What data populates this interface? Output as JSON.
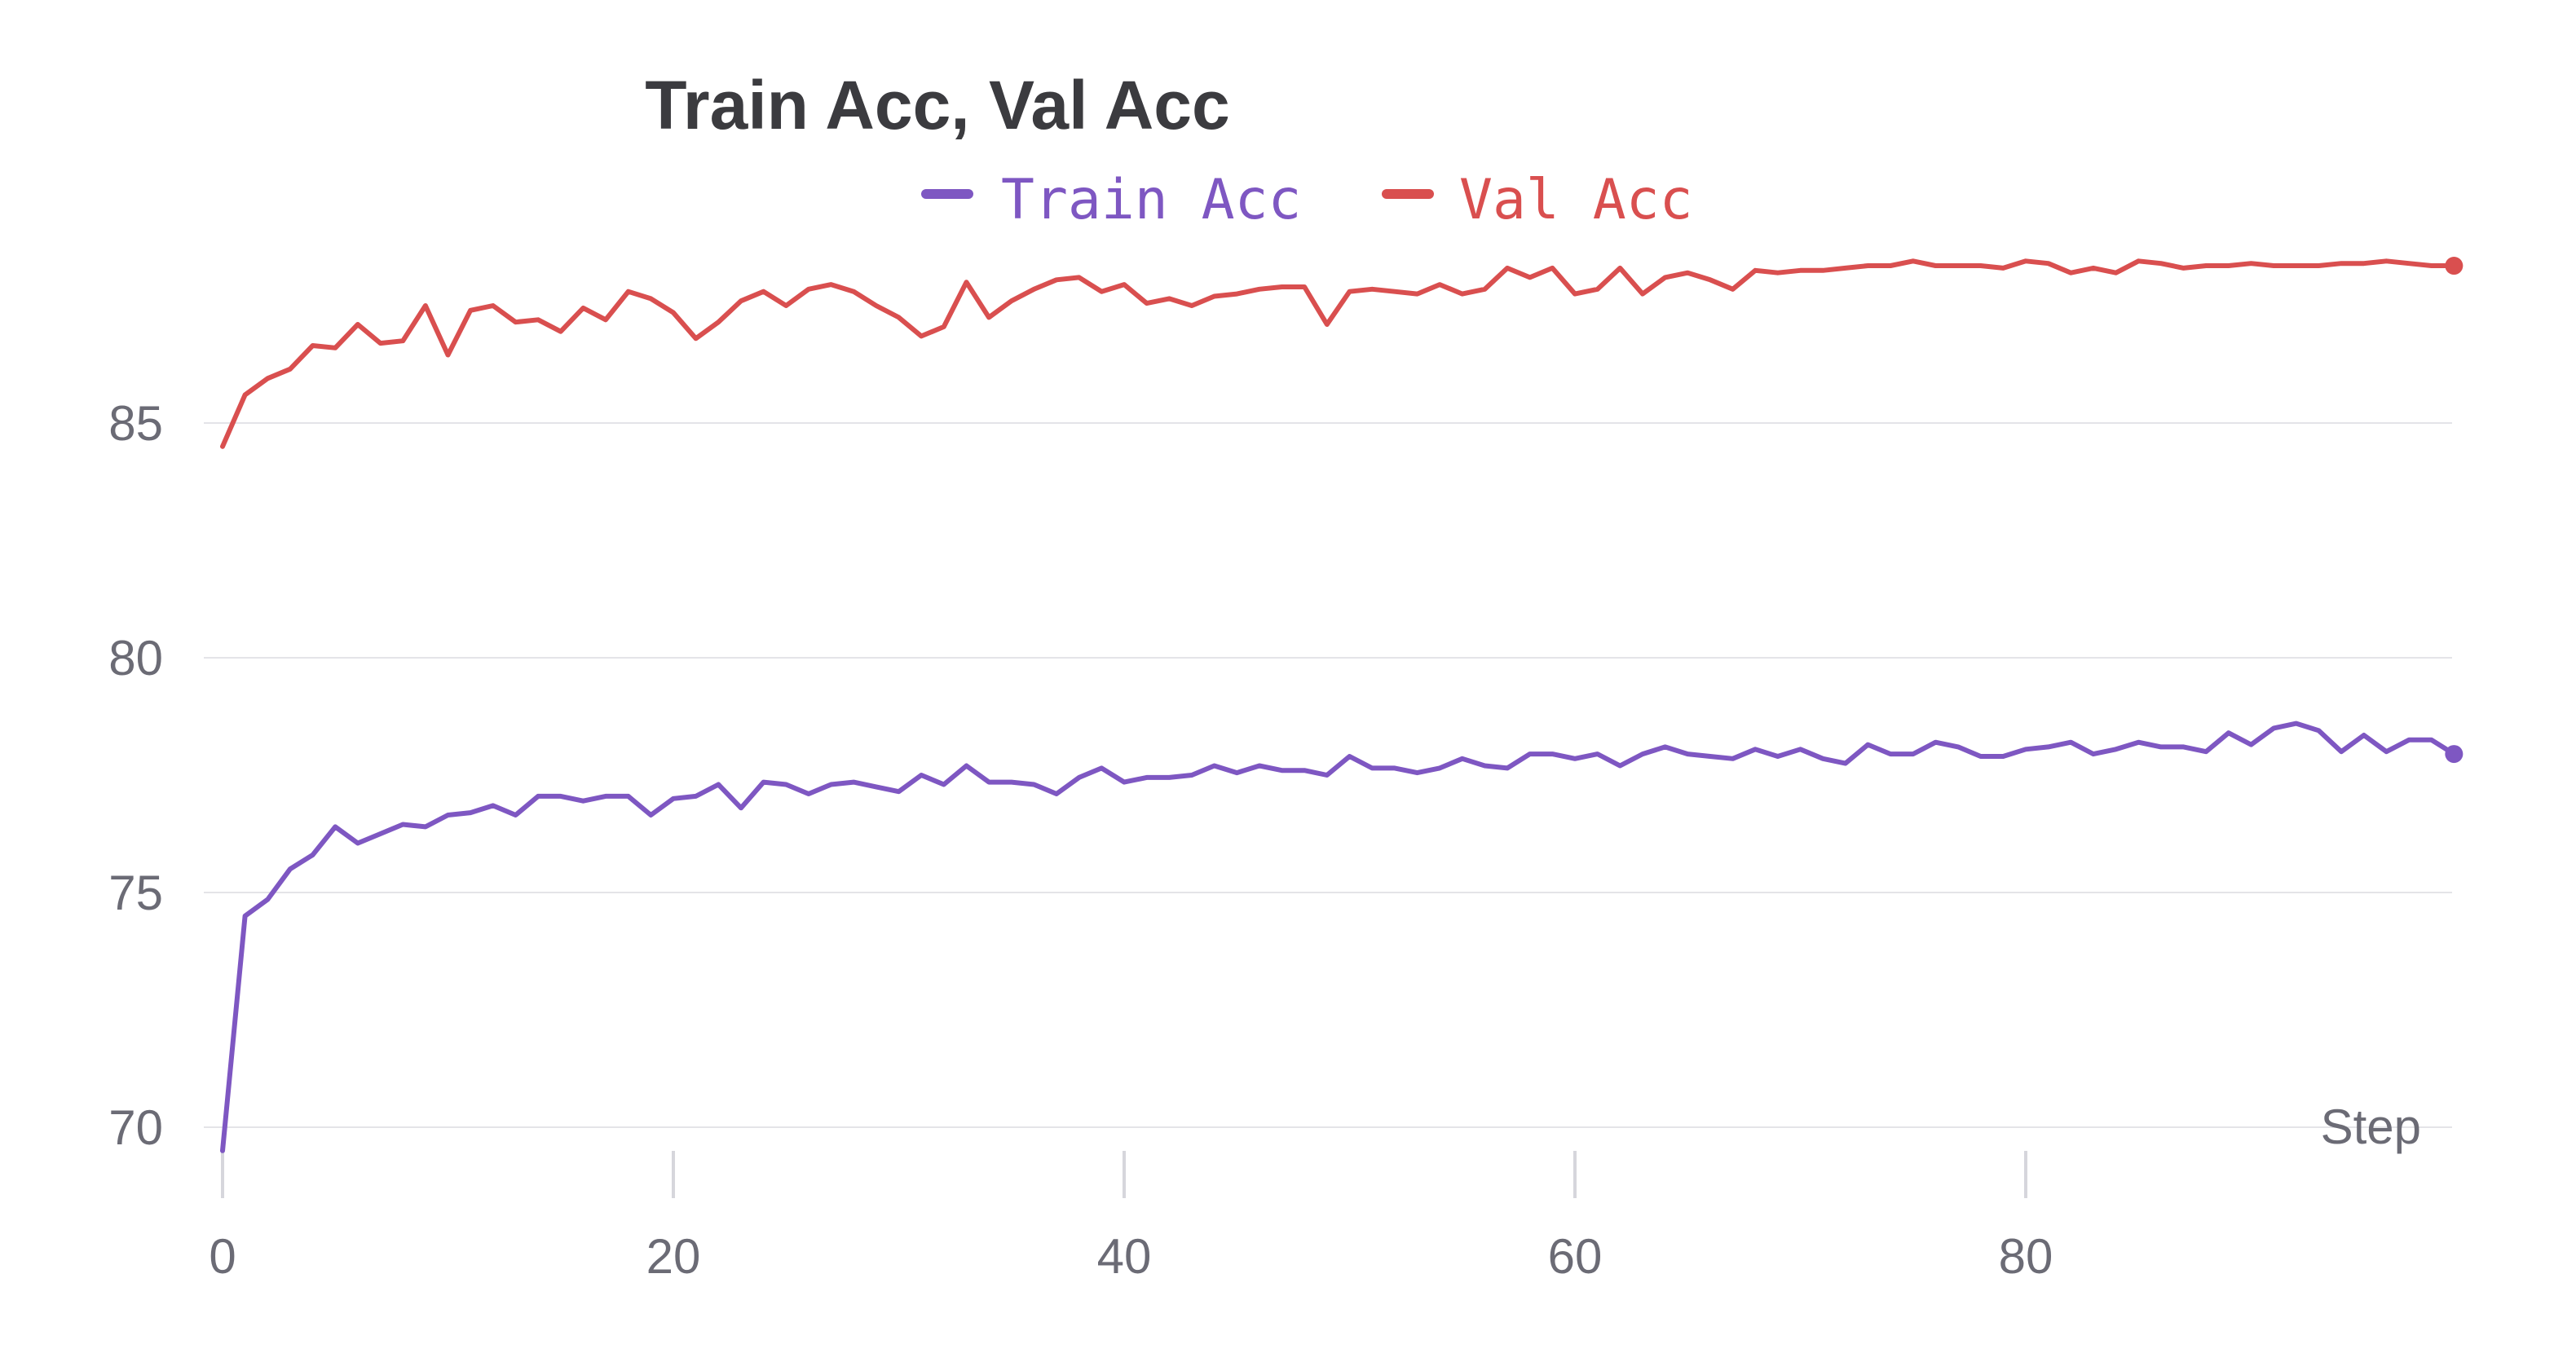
{
  "chart_data": {
    "type": "line",
    "title": "Train Acc, Val Acc",
    "xlabel": "Step",
    "ylabel": "",
    "xlim": [
      0,
      99
    ],
    "ylim": [
      69,
      90
    ],
    "x_ticks": [
      "0",
      "20",
      "40",
      "60",
      "80"
    ],
    "x_tick_values": [
      0,
      20,
      40,
      60,
      80
    ],
    "y_ticks": [
      "70",
      "75",
      "80",
      "85"
    ],
    "y_tick_values": [
      70,
      75,
      80,
      85
    ],
    "grid": true,
    "legend_position": "top-center",
    "series": [
      {
        "name": "Train Acc",
        "color": "#7e57c2",
        "x": [
          0,
          1,
          2,
          3,
          4,
          5,
          6,
          7,
          8,
          9,
          10,
          11,
          12,
          13,
          14,
          15,
          16,
          17,
          18,
          19,
          20,
          21,
          22,
          23,
          24,
          25,
          26,
          27,
          28,
          29,
          30,
          31,
          32,
          33,
          34,
          35,
          36,
          37,
          38,
          39,
          40,
          41,
          42,
          43,
          44,
          45,
          46,
          47,
          48,
          49,
          50,
          51,
          52,
          53,
          54,
          55,
          56,
          57,
          58,
          59,
          60,
          61,
          62,
          63,
          64,
          65,
          66,
          67,
          68,
          69,
          70,
          71,
          72,
          73,
          74,
          75,
          76,
          77,
          78,
          79,
          80,
          81,
          82,
          83,
          84,
          85,
          86,
          87,
          88,
          89,
          90,
          91,
          92,
          93,
          94,
          95,
          96,
          97,
          98,
          99
        ],
        "values": [
          69.5,
          74.5,
          74.85,
          75.5,
          75.8,
          76.4,
          76.05,
          76.25,
          76.45,
          76.4,
          76.65,
          76.7,
          76.85,
          76.65,
          77.05,
          77.05,
          76.95,
          77.05,
          77.05,
          76.65,
          77.0,
          77.05,
          77.3,
          76.8,
          77.35,
          77.3,
          77.1,
          77.3,
          77.35,
          77.25,
          77.15,
          77.5,
          77.3,
          77.7,
          77.35,
          77.35,
          77.3,
          77.1,
          77.45,
          77.65,
          77.35,
          77.45,
          77.45,
          77.5,
          77.7,
          77.55,
          77.7,
          77.6,
          77.6,
          77.5,
          77.9,
          77.65,
          77.65,
          77.55,
          77.65,
          77.85,
          77.7,
          77.65,
          77.95,
          77.95,
          77.85,
          77.95,
          77.7,
          77.95,
          78.1,
          77.95,
          77.9,
          77.85,
          78.05,
          77.9,
          78.05,
          77.85,
          77.75,
          78.15,
          77.95,
          77.95,
          78.2,
          78.1,
          77.9,
          77.9,
          78.05,
          78.1,
          78.2,
          77.95,
          78.05,
          78.2,
          78.1,
          78.1,
          78.0,
          78.4,
          78.15,
          78.5,
          78.6,
          78.45,
          78.0,
          78.35,
          78.0,
          78.25,
          78.25,
          77.95
        ]
      },
      {
        "name": "Val Acc",
        "color": "#d94f4f",
        "x": [
          0,
          1,
          2,
          3,
          4,
          5,
          6,
          7,
          8,
          9,
          10,
          11,
          12,
          13,
          14,
          15,
          16,
          17,
          18,
          19,
          20,
          21,
          22,
          23,
          24,
          25,
          26,
          27,
          28,
          29,
          30,
          31,
          32,
          33,
          34,
          35,
          36,
          37,
          38,
          39,
          40,
          41,
          42,
          43,
          44,
          45,
          46,
          47,
          48,
          49,
          50,
          51,
          52,
          53,
          54,
          55,
          56,
          57,
          58,
          59,
          60,
          61,
          62,
          63,
          64,
          65,
          66,
          67,
          68,
          69,
          70,
          71,
          72,
          73,
          74,
          75,
          76,
          77,
          78,
          79,
          80,
          81,
          82,
          83,
          84,
          85,
          86,
          87,
          88,
          89,
          90,
          91,
          92,
          93,
          94,
          95,
          96,
          97,
          98,
          99
        ],
        "values": [
          84.5,
          85.6,
          85.95,
          86.15,
          86.65,
          86.6,
          87.1,
          86.7,
          86.75,
          87.5,
          86.45,
          87.4,
          87.5,
          87.15,
          87.2,
          86.95,
          87.45,
          87.2,
          87.8,
          87.65,
          87.35,
          86.8,
          87.15,
          87.6,
          87.8,
          87.5,
          87.85,
          87.95,
          87.8,
          87.5,
          87.25,
          86.85,
          87.05,
          88.0,
          87.25,
          87.6,
          87.85,
          88.05,
          88.1,
          87.8,
          87.95,
          87.55,
          87.65,
          87.5,
          87.7,
          87.75,
          87.85,
          87.9,
          87.9,
          87.1,
          87.8,
          87.85,
          87.8,
          87.75,
          87.95,
          87.75,
          87.85,
          88.3,
          88.1,
          88.3,
          87.75,
          87.85,
          88.3,
          87.75,
          88.1,
          88.2,
          88.05,
          87.85,
          88.25,
          88.2,
          88.25,
          88.25,
          88.3,
          88.35,
          88.35,
          88.45,
          88.35,
          88.35,
          88.35,
          88.3,
          88.45,
          88.4,
          88.2,
          88.3,
          88.2,
          88.45,
          88.4,
          88.3,
          88.35,
          88.35,
          88.4,
          88.35,
          88.35,
          88.35,
          88.4,
          88.4,
          88.45,
          88.4,
          88.35,
          88.35
        ]
      }
    ]
  }
}
